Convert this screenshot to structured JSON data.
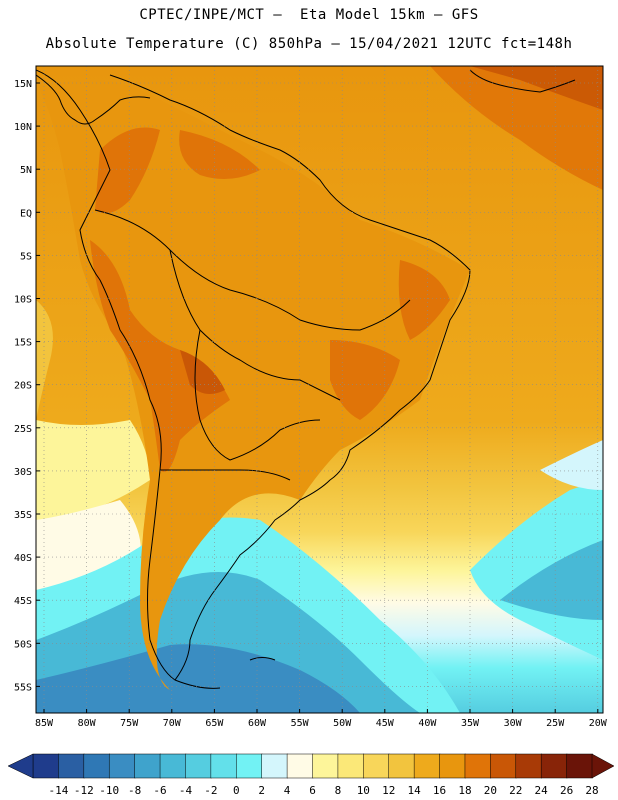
{
  "header": {
    "line1": "CPTEC/INPE/MCT —  Eta Model 15km — GFS",
    "line2": "Absolute Temperature (C) 850hPa — 15/04/2021 12UTC fct=148h"
  },
  "axes": {
    "lat_labels": [
      "15N",
      "10N",
      "5N",
      "EQ",
      "5S",
      "10S",
      "15S",
      "20S",
      "25S",
      "30S",
      "35S",
      "40S",
      "45S",
      "50S",
      "55S"
    ],
    "lon_labels": [
      "85W",
      "80W",
      "75W",
      "70W",
      "65W",
      "60W",
      "55W",
      "50W",
      "45W",
      "40W",
      "35W",
      "30W",
      "25W",
      "20W"
    ]
  },
  "colorbar": {
    "labels": [
      "-14",
      "-12",
      "-10",
      "-8",
      "-6",
      "-4",
      "-2",
      "0",
      "2",
      "4",
      "6",
      "8",
      "10",
      "12",
      "14",
      "16",
      "18",
      "20",
      "22",
      "24",
      "26",
      "28"
    ],
    "colors": [
      "#1f3c8c",
      "#2a5fa3",
      "#2f78b5",
      "#3a8dc2",
      "#3fa3cc",
      "#48b9d6",
      "#55cde0",
      "#63e0ea",
      "#72f2f4",
      "#d4f6fc",
      "#fffbe6",
      "#fdf59a",
      "#fbe878",
      "#f8d65a",
      "#f2c43e",
      "#eeaa1c",
      "#e8960e",
      "#e07408",
      "#c95706",
      "#a83a06",
      "#882408",
      "#6a1408"
    ]
  },
  "regions": {
    "ocean-north-warm": "#eeaa1c",
    "continent": "#e8960e",
    "hot-core": "#e07408",
    "south-atlantic-warm": "#f2c43e",
    "subtropical": "#f8d65a",
    "cool-band": "#fdf59a",
    "cold-south": "#72f2f4",
    "colder-south": "#3fa3cc"
  }
}
